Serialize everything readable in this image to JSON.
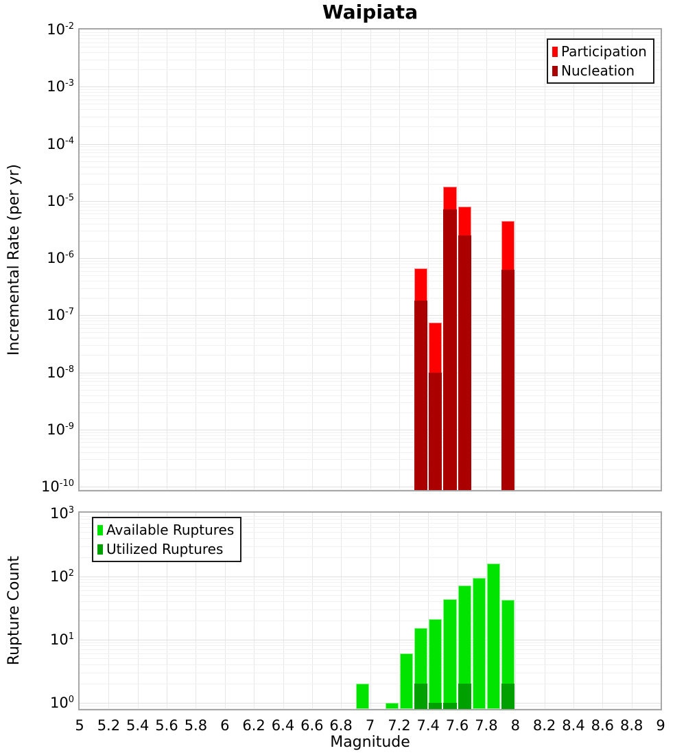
{
  "title": "Waipiata",
  "xlabel": "Magnitude",
  "x_tick_labels": [
    "5",
    "5.2",
    "5.4",
    "5.6",
    "5.8",
    "6",
    "6.2",
    "6.4",
    "6.6",
    "6.8",
    "7",
    "7.2",
    "7.4",
    "7.6",
    "7.8",
    "8",
    "8.2",
    "8.4",
    "8.6",
    "8.8",
    "9"
  ],
  "style_colors": {
    "participation": "#ff0000",
    "nucleation": "#aa0000",
    "available": "#00e400",
    "utilized": "#00a000",
    "grid_major": "#e0e0e0",
    "grid_minor": "#f1f1f1",
    "frame": "#a6a6a6"
  },
  "chart_data": [
    {
      "type": "bar",
      "title": "Waipiata",
      "ylabel": "Incremental Rate (per yr)",
      "xlabel": "Magnitude",
      "yscale": "log",
      "xlim": [
        5,
        9
      ],
      "ylim": [
        1e-10,
        0.01
      ],
      "y_tick_exponents": [
        -2,
        -3,
        -4,
        -5,
        -6,
        -7,
        -8,
        -9,
        -10
      ],
      "bin_width": 0.1,
      "grid": true,
      "legend_position": "top-right",
      "categories": [
        7.35,
        7.45,
        7.55,
        7.65,
        7.95
      ],
      "series": [
        {
          "name": "Participation",
          "color": "#ff0000",
          "values": [
            6.6e-07,
            7.5e-08,
            1.8e-05,
            8e-06,
            4.4e-06
          ]
        },
        {
          "name": "Nucleation",
          "color": "#aa0000",
          "values": [
            1.8e-07,
            1e-08,
            7.2e-06,
            2.5e-06,
            6.2e-07
          ]
        }
      ]
    },
    {
      "type": "bar",
      "title": "",
      "ylabel": "Rupture Count",
      "xlabel": "Magnitude",
      "yscale": "log",
      "xlim": [
        5,
        9
      ],
      "ylim": [
        1,
        1000
      ],
      "y_tick_exponents": [
        3,
        2,
        1,
        0
      ],
      "bin_width": 0.1,
      "grid": true,
      "legend_position": "top-left",
      "categories": [
        6.95,
        7.15,
        7.25,
        7.35,
        7.45,
        7.55,
        7.65,
        7.75,
        7.85,
        7.95
      ],
      "series": [
        {
          "name": "Available Ruptures",
          "color": "#00e400",
          "values": [
            2,
            1,
            6,
            15,
            21,
            43,
            72,
            95,
            160,
            42
          ]
        },
        {
          "name": "Utilized Ruptures",
          "color": "#00a000",
          "values": [
            0,
            0,
            0,
            2,
            1,
            1,
            2,
            0,
            0,
            2
          ]
        }
      ]
    }
  ]
}
